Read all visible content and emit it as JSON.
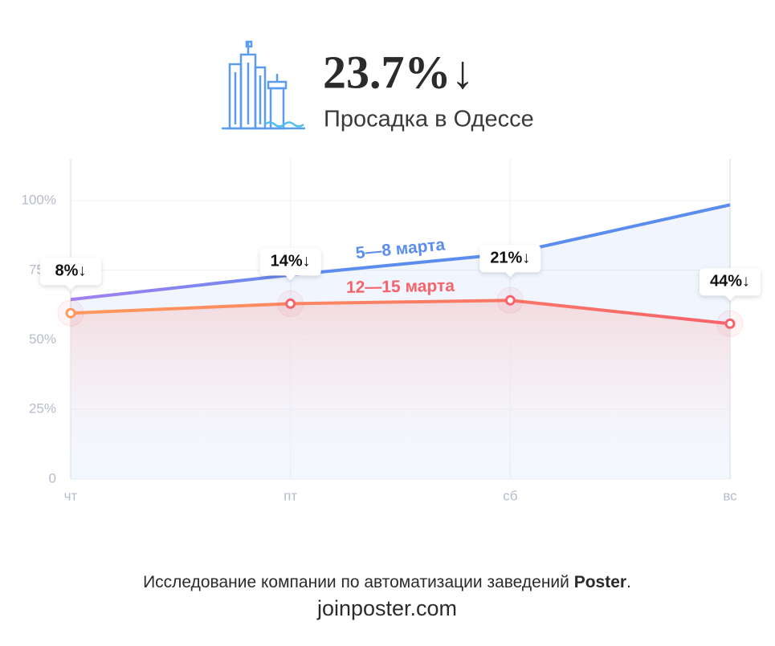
{
  "chart_data": {
    "type": "line",
    "title": "23.7%↓",
    "subtitle": "Просадка в Одессе",
    "categories": [
      "чт",
      "пт",
      "сб",
      "вс"
    ],
    "series": [
      {
        "name": "5—8 марта",
        "color": "#5b8def",
        "values": [
          64.5,
          73.3,
          81,
          98.5
        ]
      },
      {
        "name": "12—15 марта",
        "color": "#f7636b",
        "values": [
          59.6,
          63,
          64.2,
          55.8
        ]
      }
    ],
    "drops": {
      "values": [
        8,
        14,
        21,
        44
      ],
      "value_labels": [
        "8%↓",
        "14%↓",
        "21%↓",
        "44%↓"
      ]
    },
    "ylim": [
      0,
      115
    ],
    "yticks": [
      0,
      {
        "value": 25,
        "label": "25%"
      },
      {
        "value": 50,
        "label": "50%"
      },
      {
        "value": 75,
        "label": "75%"
      },
      {
        "value": 100,
        "label": "100%"
      }
    ],
    "grid": true
  },
  "footer": {
    "text": "Исследование компании по автоматизации заведений ",
    "brand": "Poster",
    "end": ".",
    "url": "joinposter.com"
  }
}
